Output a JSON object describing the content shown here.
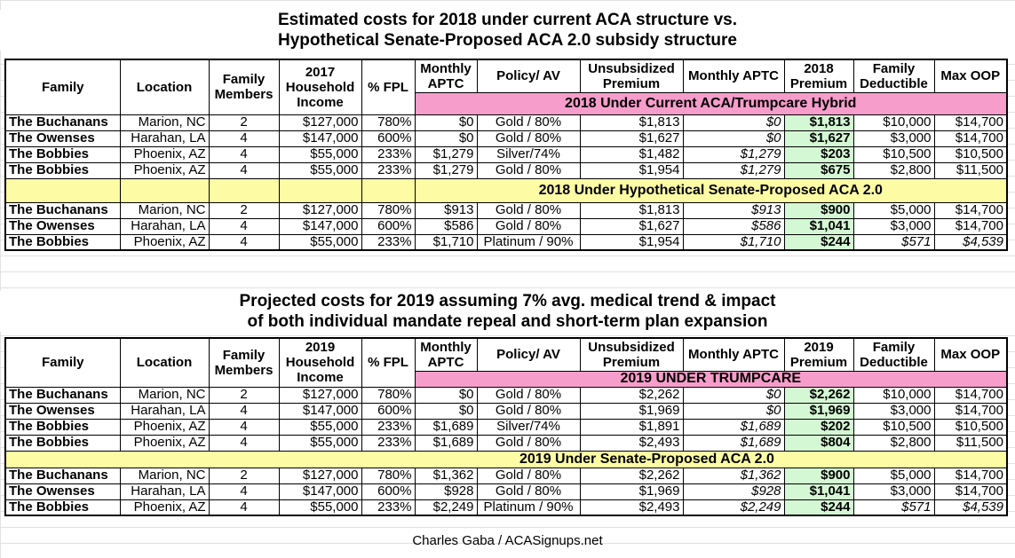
{
  "tables": [
    {
      "title_lines": [
        "Estimated costs for 2018 under current ACA structure vs.",
        "Hypothetical Senate-Proposed ACA 2.0 subsidy structure"
      ],
      "headers": [
        "Family",
        "Location",
        "Family Members",
        "2017 Household Income",
        "% FPL",
        "Monthly APTC",
        "Policy/ AV",
        "Unsubsidized Premium",
        "Monthly APTC",
        "2018 Premium",
        "Family Deductible",
        "Max OOP"
      ],
      "band1": "2018 Under Current ACA/Trumpcare Hybrid",
      "group1": [
        [
          "The Buchanans",
          "Marion, NC",
          "2",
          "$127,000",
          "780%",
          "$0",
          "Gold / 80%",
          "$1,813",
          "$0",
          "$1,813",
          "$10,000",
          "$14,700"
        ],
        [
          "The Owenses",
          "Harahan, LA",
          "4",
          "$147,000",
          "600%",
          "$0",
          "Gold / 80%",
          "$1,627",
          "$0",
          "$1,627",
          "$3,000",
          "$14,700"
        ],
        [
          "The Bobbies",
          "Phoenix, AZ",
          "4",
          "$55,000",
          "233%",
          "$1,279",
          "Silver/74%",
          "$1,482",
          "$1,279",
          "$203",
          "$10,500",
          "$10,500"
        ],
        [
          "The Bobbies",
          "Phoenix, AZ",
          "4",
          "$55,000",
          "233%",
          "$1,279",
          "Gold / 80%",
          "$1,954",
          "$1,279",
          "$675",
          "$2,800",
          "$11,500"
        ]
      ],
      "band2": "2018 Under Hypothetical Senate-Proposed ACA 2.0",
      "group2": [
        [
          "The Buchanans",
          "Marion, NC",
          "2",
          "$127,000",
          "780%",
          "$913",
          "Gold / 80%",
          "$1,813",
          "$913",
          "$900",
          "$5,000",
          "$14,700"
        ],
        [
          "The Owenses",
          "Harahan, LA",
          "4",
          "$147,000",
          "600%",
          "$586",
          "Gold / 80%",
          "$1,627",
          "$586",
          "$1,041",
          "$3,000",
          "$14,700"
        ],
        [
          "The Bobbies",
          "Phoenix, AZ",
          "4",
          "$55,000",
          "233%",
          "$1,710",
          "Platinum / 90%",
          "$1,954",
          "$1,710",
          "$244",
          "$571",
          "$4,539"
        ]
      ]
    },
    {
      "title_lines": [
        "Projected costs for 2019 assuming 7% avg. medical trend & impact",
        "of both individual mandate repeal and short-term plan expansion"
      ],
      "headers": [
        "Family",
        "Location",
        "Family Members",
        "2019 Household Income",
        "% FPL",
        "Monthly APTC",
        "Policy/ AV",
        "Unsubsidized Premium",
        "Monthly APTC",
        "2019 Premium",
        "Family Deductible",
        "Max OOP"
      ],
      "band1": "2019 UNDER TRUMPCARE",
      "group1": [
        [
          "The Buchanans",
          "Marion, NC",
          "2",
          "$127,000",
          "780%",
          "$0",
          "Gold / 80%",
          "$2,262",
          "$0",
          "$2,262",
          "$10,000",
          "$14,700"
        ],
        [
          "The Owenses",
          "Harahan, LA",
          "4",
          "$147,000",
          "600%",
          "$0",
          "Gold / 80%",
          "$1,969",
          "$0",
          "$1,969",
          "$3,000",
          "$14,700"
        ],
        [
          "The Bobbies",
          "Phoenix, AZ",
          "4",
          "$55,000",
          "233%",
          "$1,689",
          "Silver/74%",
          "$1,891",
          "$1,689",
          "$202",
          "$10,500",
          "$10,500"
        ],
        [
          "The Bobbies",
          "Phoenix, AZ",
          "4",
          "$55,000",
          "233%",
          "$1,689",
          "Gold / 80%",
          "$2,493",
          "$1,689",
          "$804",
          "$2,800",
          "$11,500"
        ]
      ],
      "band2": "2019 Under Senate-Proposed ACA 2.0",
      "group2": [
        [
          "The Buchanans",
          "Marion, NC",
          "2",
          "$127,000",
          "780%",
          "$1,362",
          "Gold / 80%",
          "$2,262",
          "$1,362",
          "$900",
          "$5,000",
          "$14,700"
        ],
        [
          "The Owenses",
          "Harahan, LA",
          "4",
          "$147,000",
          "600%",
          "$928",
          "Gold / 80%",
          "$1,969",
          "$928",
          "$1,041",
          "$3,000",
          "$14,700"
        ],
        [
          "The Bobbies",
          "Phoenix, AZ",
          "4",
          "$55,000",
          "233%",
          "$2,249",
          "Platinum / 90%",
          "$2,493",
          "$2,249",
          "$244",
          "$571",
          "$4,539"
        ]
      ]
    }
  ],
  "footer": "Charles Gaba / ACASignups.net",
  "colors": {
    "band_pink": "#f79dcb",
    "band_yellow": "#fdfca5",
    "premium_green": "#d4f7d4"
  }
}
